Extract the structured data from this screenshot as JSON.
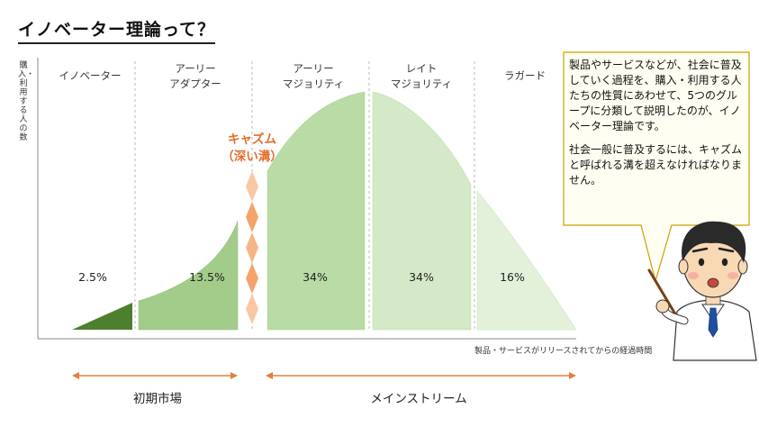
{
  "title": "イノベーター理論って？",
  "y_axis_label": "購入・利用する人の数",
  "x_axis_label": "製品・サービスがリリースされてからの経過時間",
  "segments": [
    {
      "label_lines": [
        "イノベーター"
      ],
      "percent": "2.5%"
    },
    {
      "label_lines": [
        "アーリー",
        "アダプター"
      ],
      "percent": "13.5%"
    },
    {
      "label_lines": [
        "アーリー",
        "マジョリティ"
      ],
      "percent": "34%"
    },
    {
      "label_lines": [
        "レイト",
        "マジョリティ"
      ],
      "percent": "34%"
    },
    {
      "label_lines": [
        "ラガード"
      ],
      "percent": "16%"
    }
  ],
  "chasm_label": {
    "line1": "キャズム",
    "line2": "（深い溝）"
  },
  "explanation": {
    "paragraph1": "製品やサービスなどが、社会に普及していく過程を、購入・利用する人たちの性質にあわせて、5つのグループに分類して説明したのが、イノベーター理論です。",
    "paragraph2": "社会一般に普及するには、キャズムと呼ばれる溝を超えなければなりません。"
  },
  "markets": {
    "early": "初期市場",
    "mainstream": "メインストリーム"
  },
  "colors": {
    "innovator": "#4e7f2e",
    "early_adopter": "#a3cc8a",
    "early_majority": "#b9dba5",
    "late_majority": "#d4e9c7",
    "laggard": "#e3f1db",
    "chasm": "#f4a36a",
    "arrow": "#e67e3a",
    "callout_border": "#c9a100"
  }
}
